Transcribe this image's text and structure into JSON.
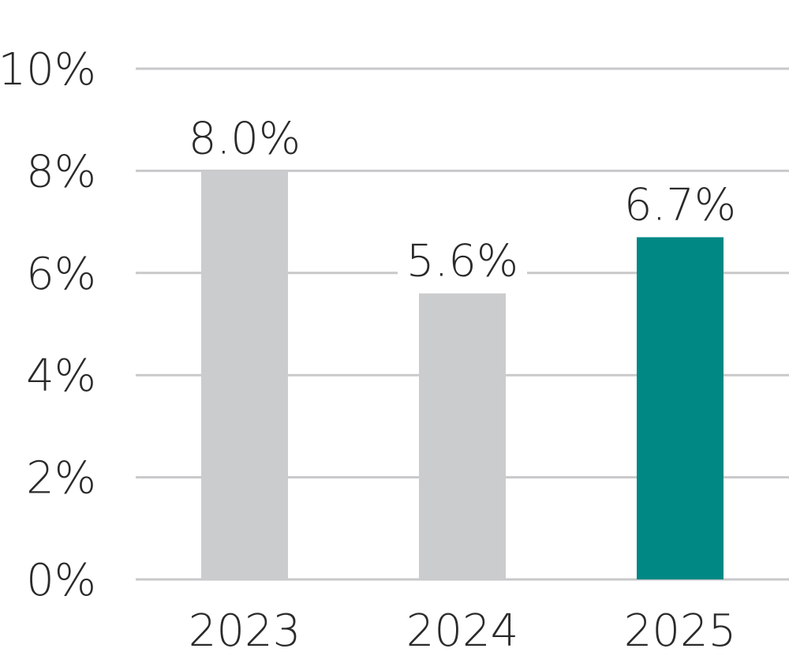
{
  "chart_data": {
    "type": "bar",
    "categories": [
      "2023",
      "2024",
      "2025"
    ],
    "values": [
      8.0,
      5.6,
      6.7
    ],
    "value_labels": [
      "8.0%",
      "5.6%",
      "6.7%"
    ],
    "bar_colors": [
      "#cbcccd",
      "#cbcccd",
      "#008885"
    ],
    "ylim": [
      0,
      10
    ],
    "yticks": [
      0,
      2,
      4,
      6,
      8,
      10
    ],
    "ytick_labels": [
      "0%",
      "2%",
      "4%",
      "6%",
      "8%",
      "10%"
    ],
    "grid": true,
    "legend": "none",
    "title": "",
    "xlabel": "",
    "ylabel": ""
  },
  "colors": {
    "grid": "#c9c9cb",
    "text": "#2a2a2a",
    "highlight": "#008885",
    "muted": "#cbcccd"
  }
}
